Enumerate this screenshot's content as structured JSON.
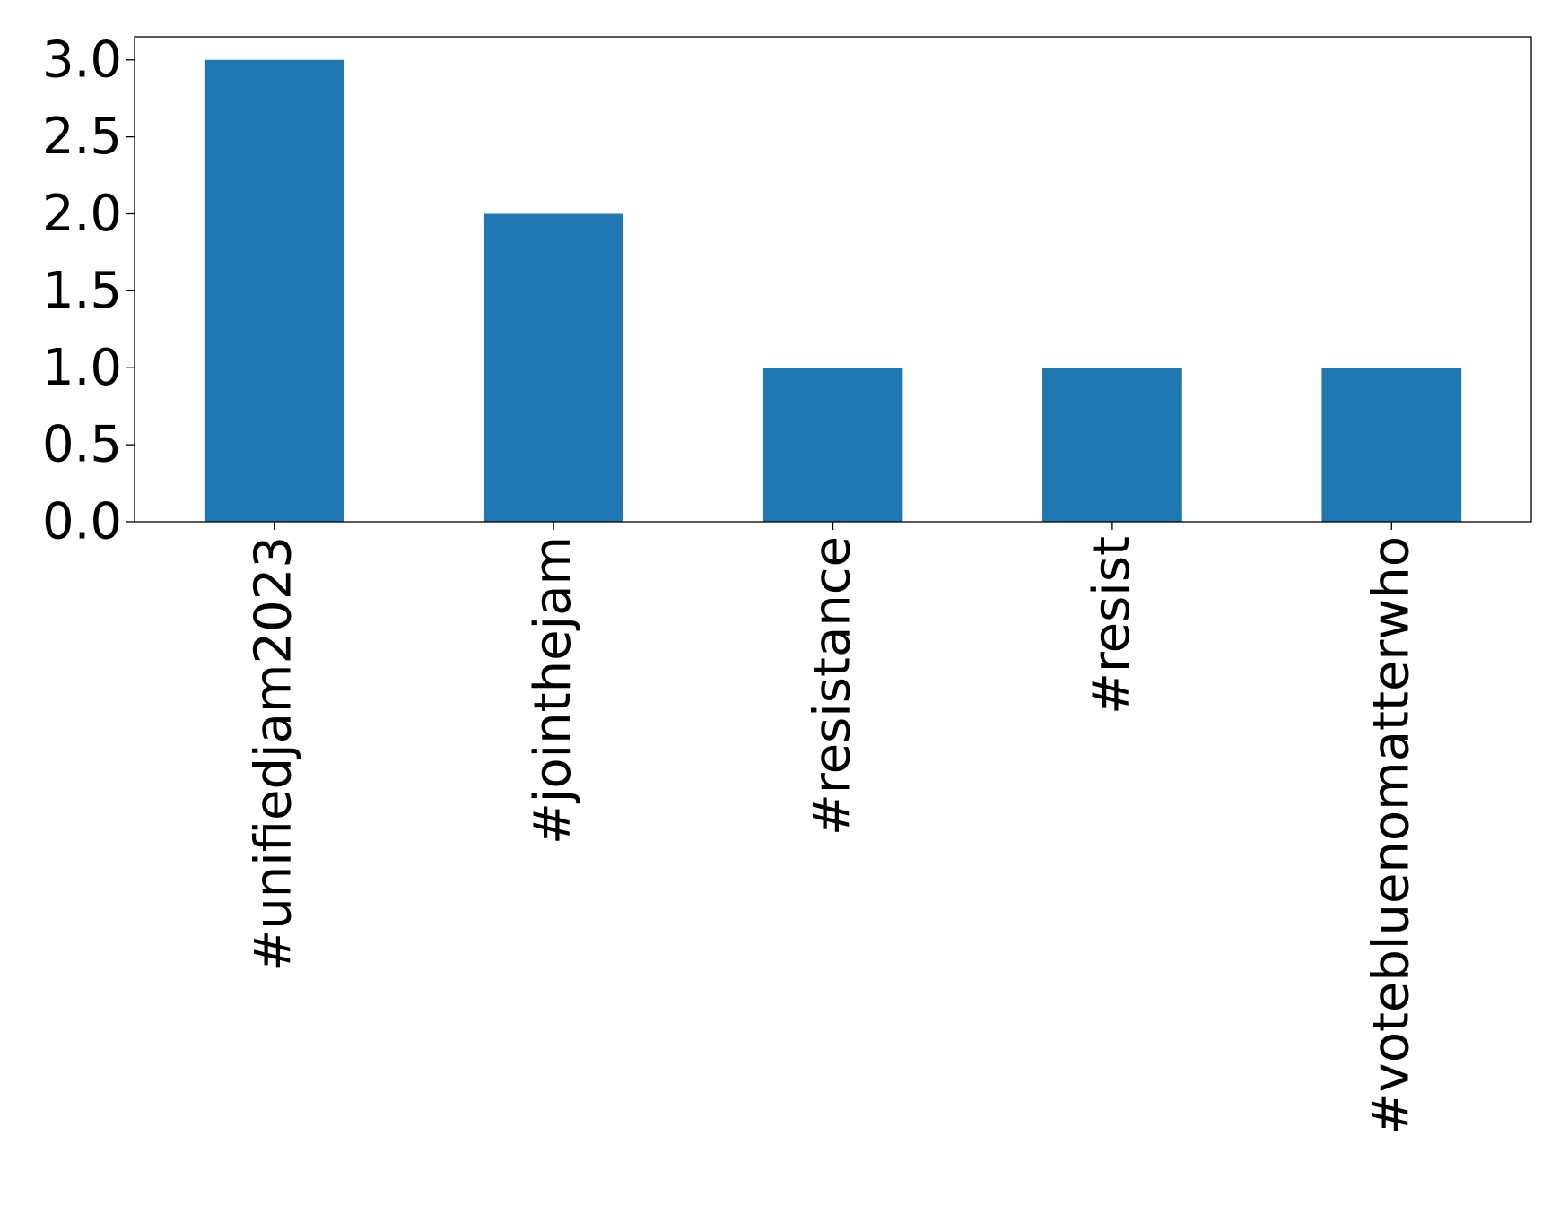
{
  "chart_data": {
    "type": "bar",
    "title": "",
    "xlabel": "",
    "ylabel": "",
    "categories": [
      "#unifiedjam2023",
      "#jointhejam",
      "#resistance",
      "#resist",
      "#votebluenomatterwho"
    ],
    "values": [
      3,
      2,
      1,
      1,
      1
    ],
    "ylim": [
      0,
      3.15
    ],
    "yticks": [
      "0.0",
      "0.5",
      "1.0",
      "1.5",
      "2.0",
      "2.5",
      "3.0"
    ],
    "grid": false,
    "legend": "none",
    "bar_color": "#1f77b4"
  }
}
